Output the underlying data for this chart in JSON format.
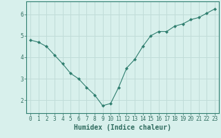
{
  "x": [
    0,
    1,
    2,
    3,
    4,
    5,
    6,
    7,
    8,
    9,
    10,
    11,
    12,
    13,
    14,
    15,
    16,
    17,
    18,
    19,
    20,
    21,
    22,
    23
  ],
  "y": [
    4.8,
    4.7,
    4.5,
    4.1,
    3.7,
    3.25,
    3.0,
    2.6,
    2.25,
    1.75,
    1.85,
    2.6,
    3.5,
    3.9,
    4.5,
    5.0,
    5.2,
    5.2,
    5.45,
    5.55,
    5.75,
    5.85,
    6.05,
    6.25
  ],
  "line_color": "#2e7d6e",
  "marker": "D",
  "marker_size": 2.2,
  "background_color": "#d8f0ec",
  "grid_color": "#c0dcd8",
  "xlabel": "Humidex (Indice chaleur)",
  "xlim": [
    -0.5,
    23.5
  ],
  "ylim": [
    1.4,
    6.6
  ],
  "yticks": [
    2,
    3,
    4,
    5,
    6
  ],
  "xticks": [
    0,
    1,
    2,
    3,
    4,
    5,
    6,
    7,
    8,
    9,
    10,
    11,
    12,
    13,
    14,
    15,
    16,
    17,
    18,
    19,
    20,
    21,
    22,
    23
  ],
  "font_color": "#2e6b5e",
  "tick_fontsize": 5.5,
  "xlabel_fontsize": 7.0
}
